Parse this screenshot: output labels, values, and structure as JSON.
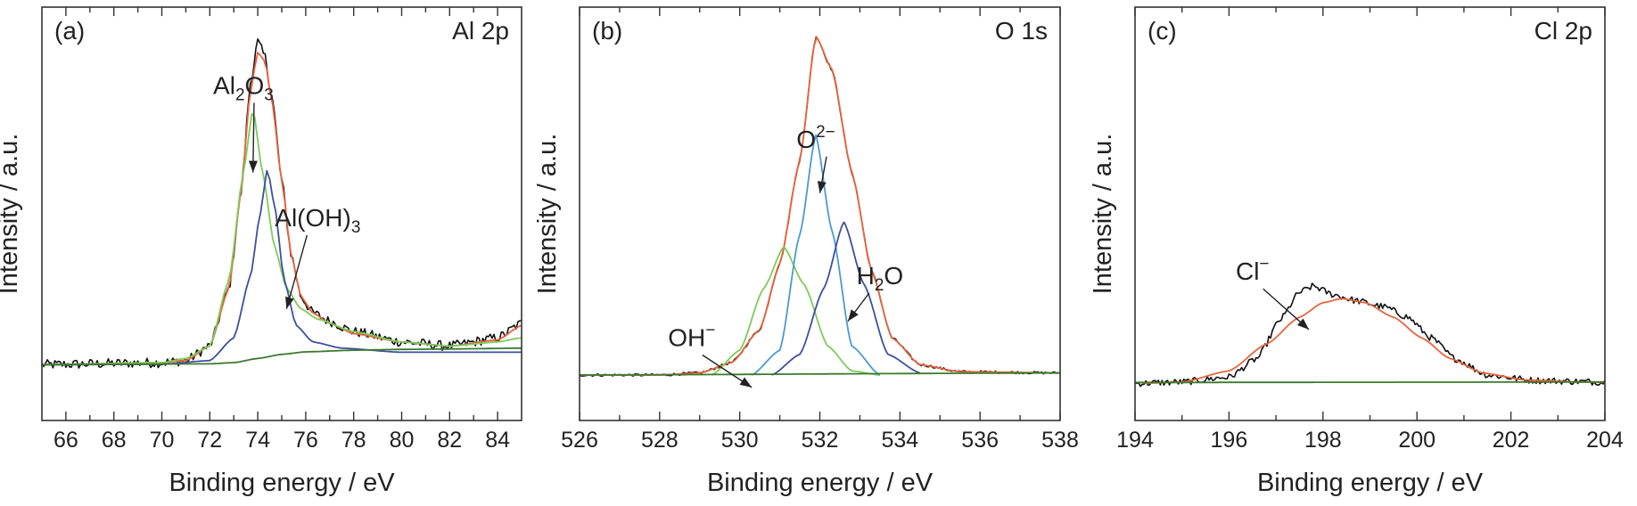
{
  "chart_data": [
    {
      "type": "line",
      "panel_label": "(a)",
      "title": "Al 2p",
      "xlabel": "Binding energy / eV",
      "ylabel": "Intensity / a.u.",
      "xlim": [
        65,
        85
      ],
      "ylim": [
        0,
        1
      ],
      "x_ticks": [
        66,
        68,
        70,
        72,
        74,
        76,
        78,
        80,
        82,
        84
      ],
      "grid": false,
      "series": [
        {
          "role": "raw",
          "color": "#111111",
          "noise": 0.012,
          "base": [
            [
              65,
              0.135
            ],
            [
              70,
              0.14
            ],
            [
              71,
              0.145
            ],
            [
              72,
              0.18
            ],
            [
              72.8,
              0.32
            ],
            [
              73.3,
              0.55
            ],
            [
              73.7,
              0.82
            ],
            [
              74.0,
              0.915
            ],
            [
              74.3,
              0.88
            ],
            [
              74.6,
              0.78
            ],
            [
              75.0,
              0.58
            ],
            [
              75.4,
              0.4
            ],
            [
              75.8,
              0.3
            ],
            [
              76.3,
              0.26
            ],
            [
              77,
              0.24
            ],
            [
              78,
              0.215
            ],
            [
              80,
              0.19
            ],
            [
              82,
              0.18
            ],
            [
              84,
              0.2
            ],
            [
              85,
              0.235
            ]
          ]
        },
        {
          "role": "envelope",
          "color": "#e8643c",
          "points": [
            [
              65,
              0.135
            ],
            [
              70,
              0.14
            ],
            [
              71,
              0.145
            ],
            [
              72,
              0.18
            ],
            [
              72.8,
              0.32
            ],
            [
              73.3,
              0.55
            ],
            [
              73.7,
              0.8
            ],
            [
              74.0,
              0.89
            ],
            [
              74.3,
              0.87
            ],
            [
              74.6,
              0.77
            ],
            [
              75.0,
              0.58
            ],
            [
              75.4,
              0.4
            ],
            [
              75.8,
              0.3
            ],
            [
              76.3,
              0.26
            ],
            [
              77,
              0.235
            ],
            [
              78,
              0.21
            ],
            [
              80,
              0.19
            ],
            [
              82,
              0.18
            ],
            [
              84,
              0.195
            ],
            [
              85,
              0.23
            ]
          ]
        },
        {
          "name": "Al2O3",
          "role": "component",
          "color": "#7ccc5a",
          "points": [
            [
              65,
              0.135
            ],
            [
              70,
              0.14
            ],
            [
              71,
              0.15
            ],
            [
              72,
              0.18
            ],
            [
              72.8,
              0.34
            ],
            [
              73.4,
              0.6
            ],
            [
              73.8,
              0.755
            ],
            [
              74.2,
              0.6
            ],
            [
              74.7,
              0.42
            ],
            [
              75.2,
              0.32
            ],
            [
              75.8,
              0.27
            ],
            [
              76.5,
              0.245
            ],
            [
              78,
              0.215
            ],
            [
              80,
              0.19
            ],
            [
              82,
              0.18
            ],
            [
              84,
              0.19
            ],
            [
              85,
              0.2
            ]
          ]
        },
        {
          "name": "Al(OH)3",
          "role": "component",
          "color": "#3e4fa0",
          "points": [
            [
              65,
              0.135
            ],
            [
              70,
              0.136
            ],
            [
              72,
              0.145
            ],
            [
              73.0,
              0.2
            ],
            [
              73.7,
              0.35
            ],
            [
              74.1,
              0.5
            ],
            [
              74.4,
              0.61
            ],
            [
              74.7,
              0.52
            ],
            [
              75.1,
              0.34
            ],
            [
              75.6,
              0.23
            ],
            [
              76.3,
              0.19
            ],
            [
              77.5,
              0.175
            ],
            [
              80,
              0.165
            ],
            [
              85,
              0.165
            ]
          ]
        },
        {
          "role": "background",
          "color": "#3c7a2c",
          "points": [
            [
              65,
              0.135
            ],
            [
              72,
              0.137
            ],
            [
              73,
              0.14
            ],
            [
              74,
              0.15
            ],
            [
              75,
              0.16
            ],
            [
              76,
              0.166
            ],
            [
              78,
              0.17
            ],
            [
              80,
              0.172
            ],
            [
              82,
              0.173
            ],
            [
              85,
              0.175
            ]
          ]
        }
      ],
      "annotations": [
        {
          "text_main": "Al",
          "sub1": "2",
          "mid": "O",
          "sub2": "3",
          "x": 73.4,
          "y": 0.79,
          "arrow_to": [
            73.8,
            0.6
          ]
        },
        {
          "text_main": "Al(OH)",
          "sub1": "3",
          "x": 76.5,
          "y": 0.47,
          "arrow_to": [
            75.2,
            0.27
          ]
        }
      ]
    },
    {
      "type": "line",
      "panel_label": "(b)",
      "title": "O 1s",
      "xlabel": "Binding energy / eV",
      "ylabel": "Intensity / a.u.",
      "xlim": [
        526,
        538
      ],
      "ylim": [
        0,
        1
      ],
      "x_ticks": [
        526,
        528,
        530,
        532,
        534,
        536,
        538
      ],
      "grid": false,
      "series": [
        {
          "role": "raw",
          "color": "#111111",
          "noise": 0.003,
          "base": [
            [
              526,
              0.11
            ],
            [
              528,
              0.11
            ],
            [
              529,
              0.115
            ],
            [
              529.8,
              0.14
            ],
            [
              530.5,
              0.22
            ],
            [
              531.0,
              0.38
            ],
            [
              531.5,
              0.63
            ],
            [
              531.9,
              0.93
            ],
            [
              532.3,
              0.85
            ],
            [
              532.8,
              0.6
            ],
            [
              533.3,
              0.36
            ],
            [
              533.8,
              0.2
            ],
            [
              534.5,
              0.135
            ],
            [
              535.5,
              0.118
            ],
            [
              538,
              0.115
            ]
          ]
        },
        {
          "role": "envelope",
          "color": "#e8643c",
          "points": [
            [
              526,
              0.11
            ],
            [
              528,
              0.11
            ],
            [
              529,
              0.115
            ],
            [
              529.8,
              0.14
            ],
            [
              530.5,
              0.22
            ],
            [
              531.0,
              0.38
            ],
            [
              531.5,
              0.63
            ],
            [
              531.9,
              0.93
            ],
            [
              532.3,
              0.85
            ],
            [
              532.8,
              0.6
            ],
            [
              533.3,
              0.36
            ],
            [
              533.8,
              0.2
            ],
            [
              534.5,
              0.135
            ],
            [
              535.5,
              0.118
            ],
            [
              538,
              0.115
            ]
          ]
        },
        {
          "name": "OH−",
          "role": "component",
          "color": "#7ccc5a",
          "points": [
            [
              529.3,
              0.11
            ],
            [
              530.0,
              0.17
            ],
            [
              530.6,
              0.32
            ],
            [
              531.1,
              0.42
            ],
            [
              531.6,
              0.33
            ],
            [
              532.2,
              0.18
            ],
            [
              532.8,
              0.12
            ],
            [
              533.5,
              0.11
            ]
          ]
        },
        {
          "name": "O2−",
          "role": "component",
          "color": "#4a9ad2",
          "points": [
            [
              530.3,
              0.11
            ],
            [
              531.0,
              0.17
            ],
            [
              531.5,
              0.45
            ],
            [
              531.9,
              0.69
            ],
            [
              532.3,
              0.46
            ],
            [
              532.8,
              0.18
            ],
            [
              533.5,
              0.11
            ]
          ]
        },
        {
          "name": "H2O",
          "role": "component",
          "color": "#3e4fa0",
          "points": [
            [
              530.8,
              0.11
            ],
            [
              531.5,
              0.16
            ],
            [
              532.1,
              0.32
            ],
            [
              532.6,
              0.48
            ],
            [
              533.1,
              0.33
            ],
            [
              533.7,
              0.16
            ],
            [
              534.5,
              0.115
            ]
          ]
        },
        {
          "role": "background",
          "color": "#3c7a2c",
          "points": [
            [
              526,
              0.11
            ],
            [
              538,
              0.115
            ]
          ]
        }
      ],
      "annotations": [
        {
          "text_main": "O",
          "sup": "2−",
          "x": 531.9,
          "y": 0.66,
          "arrow_to": [
            532.0,
            0.55
          ]
        },
        {
          "text_main": "H",
          "sub1": "2",
          "mid": "O",
          "x": 533.5,
          "y": 0.33,
          "arrow_to": [
            532.7,
            0.24
          ]
        },
        {
          "text_main": "OH",
          "sup": "−",
          "x": 528.8,
          "y": 0.18,
          "arrow_to": [
            530.3,
            0.08
          ]
        }
      ]
    },
    {
      "type": "line",
      "panel_label": "(c)",
      "title": "Cl 2p",
      "xlabel": "Binding energy / eV",
      "ylabel": "Intensity / a.u.",
      "xlim": [
        194,
        204
      ],
      "ylim": [
        0,
        1
      ],
      "x_ticks": [
        194,
        196,
        198,
        200,
        202,
        204
      ],
      "grid": false,
      "series": [
        {
          "role": "raw",
          "color": "#111111",
          "noise": 0.008,
          "base": [
            [
              194,
              0.09
            ],
            [
              195,
              0.093
            ],
            [
              196,
              0.105
            ],
            [
              196.6,
              0.15
            ],
            [
              197.1,
              0.245
            ],
            [
              197.5,
              0.31
            ],
            [
              197.8,
              0.325
            ],
            [
              198.2,
              0.305
            ],
            [
              198.7,
              0.29
            ],
            [
              199.3,
              0.275
            ],
            [
              199.8,
              0.25
            ],
            [
              200.3,
              0.2
            ],
            [
              200.8,
              0.15
            ],
            [
              201.5,
              0.11
            ],
            [
              202.5,
              0.097
            ],
            [
              204,
              0.093
            ]
          ]
        },
        {
          "role": "envelope",
          "color": "#e8643c",
          "points": [
            [
              194.2,
              0.09
            ],
            [
              195,
              0.093
            ],
            [
              196,
              0.12
            ],
            [
              196.8,
              0.185
            ],
            [
              197.5,
              0.25
            ],
            [
              198.0,
              0.285
            ],
            [
              198.4,
              0.295
            ],
            [
              198.9,
              0.285
            ],
            [
              199.5,
              0.25
            ],
            [
              200.1,
              0.2
            ],
            [
              200.7,
              0.15
            ],
            [
              201.4,
              0.115
            ],
            [
              202.3,
              0.098
            ],
            [
              203.5,
              0.093
            ],
            [
              204,
              0.093
            ]
          ]
        },
        {
          "role": "background",
          "color": "#3c7a2c",
          "points": [
            [
              194,
              0.092
            ],
            [
              204,
              0.093
            ]
          ]
        }
      ],
      "annotations": [
        {
          "text_main": "Cl",
          "sup": "−",
          "x": 196.5,
          "y": 0.34,
          "arrow_to": [
            197.7,
            0.22
          ]
        }
      ]
    }
  ]
}
